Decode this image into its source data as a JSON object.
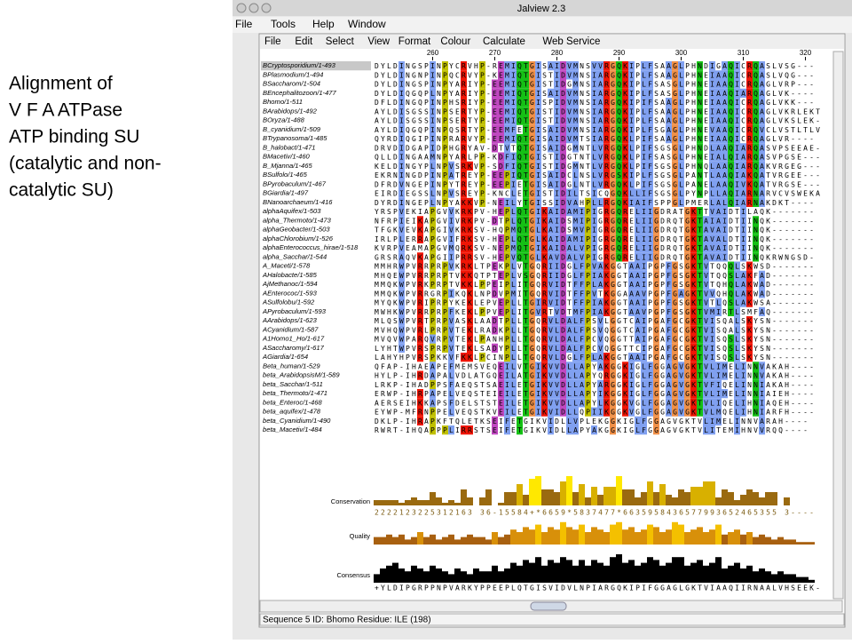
{
  "slide_text": [
    "Alignment of",
    "V F A ATPase",
    "ATP binding SU",
    "(catalytic and non-",
    "catalytic SU)"
  ],
  "window_title": "Jalview 2.3",
  "app_menu": [
    "File",
    "Tools",
    "Help",
    "Window"
  ],
  "menu": [
    "File",
    "Edit",
    "Select",
    "View",
    "Format",
    "Colour",
    "Calculate",
    "Web Service"
  ],
  "ruler": [
    260,
    270,
    280,
    290,
    300,
    310,
    320
  ],
  "sequences": [
    {
      "name": "BCryptosporidium/1-493",
      "seq": "DYLDINGSPINPYCRVHP-REMIQTGISAIDVMNSVVRGQKIPLFSAAGLPHNDIGAQICRQASLVSG---"
    },
    {
      "name": "BPlasmodium/1-494",
      "seq": "DYLDINGNPINPQCRVYP-KEMIQTGISTIDVMNSIARGQKIPLFSAAGLPHNEIAAQICRQASLVQG---"
    },
    {
      "name": "BSaccharom/1-504",
      "seq": "DYLDINGSPINPYARIYP-EEMIQTGISTIDGMNSIARGQKIPLFSASGLPHNEIAAQICRQAGLVRP---"
    },
    {
      "name": "BEncephalitozoon/1-477",
      "seq": "DYLDIQGQPLNPYARIYP-EEMIQTGISAIDVMNSIARGQKIPLFSASGLPHNEIAAQIARQAGLVK----"
    },
    {
      "name": "Bhomo/1-511",
      "seq": "DFLDINGQPINPHSRIYP-EEMIQTGISPIDVMNSIARGQKIPIFSAAGLPHNEIAAQICRQAGLVKK---"
    },
    {
      "name": "BArabidops/1-492",
      "seq": "AYLDISGSSINPSERTYP-EEMIQTGISTIDVMNSIARGQKIPLFSAAGLPHNEIAAQICRQAGLVKRLEKT"
    },
    {
      "name": "BOryza/1-488",
      "seq": "AYLDISGSSINPSERTYP-EEMIQTGISTIDVMNSIARGQKIPLFSAAGLPHNEIAAQICRQAGLVKSLEK-"
    },
    {
      "name": "B_cyanidium/1-509",
      "seq": "AYLDIQGQPINPQSRTYP-EEMFETGISAIDVMNSIARGQKIPLFSGAGLPHNEVAAQICRQVCLVSTLTLV"
    },
    {
      "name": "BTrypanosoma/1-485",
      "seq": "QYRDIQGIPINPRARVYP-EEMIQTGISAIDVMTSIARGQKLPIFSAAGLPHNEIAAQICRQAGLVR----"
    },
    {
      "name": "B_halobact/1-471",
      "seq": "DRVDIDGAPIDPHGRYAV-DTVTQTGISAIDGMNTLVRGQKLPIFSGSGLPHNDLAAQIARQASVPSEEAE-"
    },
    {
      "name": "BMacetiv/1-460",
      "seq": "QLLDINGAAMNPYARLPP-KDFIQTGISTIDGTNTLVRGQKLPIFSASGLPHNEIALQIARQASVPGSE---"
    },
    {
      "name": "B_Mjanna/1-465",
      "seq": "KELDINGYPLNPVSRKVP-SDFIQTGISTIDGMNTLVRGQKLPIFSGSGLPHNQLAAQIARQAKVRGEG---"
    },
    {
      "name": "BSulfolo/1-465",
      "seq": "EKRNINGDPINPATREYP-EEPIQTGISAIDCLNSLVRGSKIPLFSGSGLPANTLAAQIAKQATVRGEE---"
    },
    {
      "name": "BPyrobaculum/1-467",
      "seq": "DFRDVNGEPINPYTREYP-EEPIETGISAIDGLNTLVRGQKLPIFSGSGLPANELAAQIVKQATVRGSE---"
    },
    {
      "name": "BGiardia/1-497",
      "seq": "EIRDIEGSSLNPVSREYP-KNCLETGISTIDILTSICQGQKLLIFSGSGLPYNPLLAQIARNARVCVSWEKA"
    },
    {
      "name": "BNanoarchaeum/1-416",
      "seq": "DYRDINGEPLNPYAKKVP-NEILYTGISSIDVAHPLLRGQKIAIFSPPGLPMERLALQIARNAKDKT----"
    },
    {
      "name": "alphaAquifex/1-503",
      "seq": "YRSPVEKIAPGVVKRKPV-HEPLQTGIKAIDAMIPIGRGQRELIIGDRATGKTTVAIDTILAQK-------"
    },
    {
      "name": "alpha_Thermoto/1-473",
      "seq": "NFRPIEIKAPGVIVRKPV-DTPLQTGIKAIDSMIPIGRGQRELIIGDRQTGKTAIAIDTIINQK-------"
    },
    {
      "name": "alphaGeobacter/1-503",
      "seq": "TFGKVEVKAPGIVKRKSV-HQPMQTGLKAIDSMVPIGRGQRELIIGDRQTGKTAVAIDTIINQK-------"
    },
    {
      "name": "alphaChlorobium/1-526",
      "seq": "IRLPLERRAPGVIFRKSV-HEPLQTGLKAIDAMIPIGRGQRELIIGDRQTGKTAVALDTIINQK-------"
    },
    {
      "name": "alphaEnterococcus_hirae/1-518",
      "seq": "KVRPVEAMAPGVMQRKSV-NEPMQTGIKAIDALVPIGRGQRELIIGDRQTGKTAVAIDTIINQK-------"
    },
    {
      "name": "alpha_Sacchar/1-544",
      "seq": "GRSRAQVKAPGIIPRRSV-HEPVQTGLKAVDALVPIGRGQRELIIGDRQTGKTAVAIDTIINQKRWNGSD-"
    },
    {
      "name": "A_Maceti/1-578",
      "seq": "MMHRWPVRRPRPVKRKLTPEKPLVTGQRIIDGLFPVAKGGTAAIPGPFGSGKTVTQQQLSKWSD-------"
    },
    {
      "name": "AHalobacte/1-585",
      "seq": "MHQEWPVRRPRPTVKKQTPTEPLVSGQRIIDGLFPIAKGGTAAIPGPFGSGKTVTQQSLAKFAD-------"
    },
    {
      "name": "AjMethanoc/1-594",
      "seq": "MMQKWPVRKPRPTVKKLPPEIPLITGQRVIDTFFPLAKGGTAAIPGPFGSGKTVTQHQLAKWAD-------"
    },
    {
      "name": "AEnterococ/1-593",
      "seq": "MMQKWPVRRGRPIKQKLNPDVPMITGQRVIDTFFPVTKGGAAAVPGPFGAGKTVVQHQLAKWAD-------"
    },
    {
      "name": "ASulfolobu/1-592",
      "seq": "MYQKWPVRIPRPYKEKLEPVEPLLTGIRVIDTFFPIAKGGTAAIPGPFGSGKTVTLQSLAKWSA-------"
    },
    {
      "name": "APyrobaculum/1-593",
      "seq": "MWHKWPVRRPRPFKEKLPPVEPLITGVRTVDTMFPIAKGGTAAVPGPFGSGKTVMIRTLSMFAQ-------"
    },
    {
      "name": "AArabidops/1-623",
      "seq": "MLQSWPVRTPRPVASKLAADTPLLTGQRVLDALFPSVLGGTCAIPGAFGCGKTVISQALSKYSN-------"
    },
    {
      "name": "ACyanidium/1-587",
      "seq": "MVHQWPVRLPRPVTEKLRADKPLLTGQRVLDALFPSVQGGTCAIPGAFGCGKTVISQALSKYSN-------"
    },
    {
      "name": "A1Homo1_Ho/1-617",
      "seq": "MVQVWPARQVRPVTEKLPANHPLLTGQRVLDALFPCVQGGTTAIPGAFGCGKTVISQSLSKYSN-------"
    },
    {
      "name": "ASaccharomy/1-617",
      "seq": "LYHTWPVRSPRPVTEKLSADYPLLTGQRVLDALFPCVQGGTTCIPGAFGCGKTVISQSLSKYSN-------"
    },
    {
      "name": "AGiardia/1-654",
      "seq": "LAHYHPVRSPKKVFKKLPCINPLLTGQRVLDGLFPLAKGGTAAIPGAFGCGKTVISQSLSKYSN-------"
    },
    {
      "name": "Beta_human/1-529",
      "seq": "QFAP-IHAEAPEFMEMSVEQEILVTGIKVVDLLAPYAKGGKIGLFGGAGVGKTVLIMELINNVAKAH----"
    },
    {
      "name": "beta_ArabidopsisM/1-589",
      "seq": "HYLP-IHRDAPALVDLATGQEILATGIKVVDLLAPYQRGGKIGLFGGAGVGKTVLIMELINNVAKAH----"
    },
    {
      "name": "beta_Sacchar/1-511",
      "seq": "LRKP-IHADPPSFAEQSTSAEILETGIKVVDLLAPYARGGKIGLFGGAGVGKTVFIQELINNIAKAH----"
    },
    {
      "name": "beta_Thermoto/1-471",
      "seq": "ERWP-IHRPAPELVEQSTEIEILETGIKVVDLLAPYIKGGKIGLFGGAGVGKTVLIMELINNIAIEH----"
    },
    {
      "name": "beta_Enteroc/1-468",
      "seq": "AERSEIHKKAPSFDELSTSTEILETGIKVVDLLAPYLKGGKVGLFGGAGVGKTVLIQELIHNIAQEH----"
    },
    {
      "name": "beta_aquifex/1-478",
      "seq": "EYWP-MFRNPPELVEQSTKVEILETGIKVIDLLQPIIKGGKVGLFGGAGVGKTVLMQELIHNIARFH----"
    },
    {
      "name": "beta_Cyanidium/1-490",
      "seq": "DKLP-IHRAPKFTQLETKSEIFETGIKVIDLLVPLEKGGKIGLFGGAGVGKTVLIMELINNVARAH----"
    },
    {
      "name": "beta_Macetiv/1-484",
      "seq": "RWRT-IHQAPPPLIRRSTSEIFETGIKVIDLLAPYAKGGKIGLFGGAGVGKTVLITEMIHNVVRQQ----"
    }
  ],
  "annotations": {
    "labels": [
      "Conservation",
      "Quality",
      "Consensus"
    ],
    "conservation": "2222123225312163 36-15584+*6659*5837477*6635958436577993652465355 3----",
    "quality": [
      3,
      3,
      4,
      3,
      4,
      2,
      3,
      5,
      3,
      4,
      2,
      3,
      4,
      2,
      3,
      4,
      3,
      3,
      2,
      5,
      3,
      4,
      6,
      5,
      7,
      6,
      8,
      5,
      7,
      6,
      9,
      7,
      6,
      8,
      5,
      7,
      6,
      5,
      8,
      9,
      6,
      7,
      5,
      6,
      8,
      7,
      5,
      6,
      9,
      8,
      5,
      6,
      7,
      5,
      6,
      8,
      4,
      5,
      6,
      4,
      5,
      3,
      4,
      3,
      2,
      3,
      2,
      2,
      1,
      1,
      1,
      0
    ],
    "consensus_heights": [
      3,
      5,
      6,
      7,
      5,
      4,
      6,
      5,
      4,
      6,
      5,
      4,
      3,
      5,
      4,
      3,
      5,
      4,
      4,
      6,
      4,
      5,
      7,
      6,
      8,
      7,
      9,
      6,
      8,
      7,
      9,
      8,
      6,
      8,
      6,
      8,
      7,
      6,
      9,
      10,
      7,
      8,
      6,
      7,
      9,
      8,
      6,
      7,
      9,
      9,
      6,
      7,
      8,
      6,
      7,
      9,
      5,
      6,
      7,
      5,
      6,
      4,
      5,
      4,
      3,
      4,
      3,
      3,
      2,
      2,
      1,
      0
    ],
    "consensus": "+YLDIPGRPPNPVARKYPPEEPLQTGISVIDVLNPIARGQKIPIFGGAGLGKTVIAAQIIRNAALVHSEEK-"
  },
  "status": "Sequence 5 ID: Bhomo  Residue: ILE (198)"
}
